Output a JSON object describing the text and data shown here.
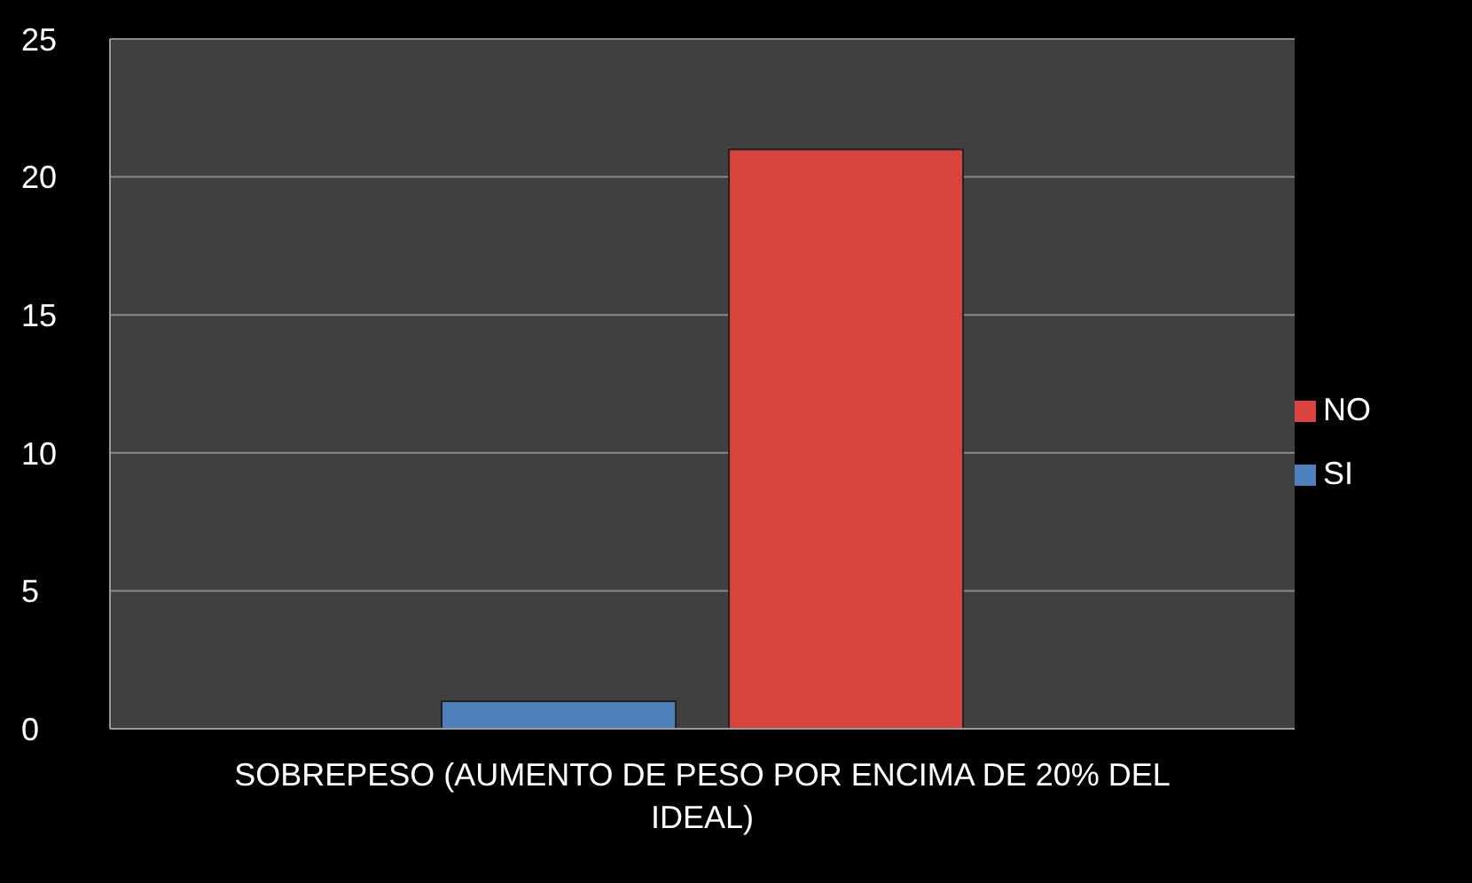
{
  "chart_data": {
    "type": "bar",
    "categories": [
      "SOBREPESO (AUMENTO DE PESO POR ENCIMA DE 20% DEL IDEAL)"
    ],
    "series": [
      {
        "name": "SI",
        "color": "#4f81bd",
        "values": [
          1
        ]
      },
      {
        "name": "NO",
        "color": "#d9443f",
        "values": [
          21
        ]
      }
    ],
    "ylim": [
      0,
      25
    ],
    "yticks": [
      0,
      5,
      10,
      15,
      20,
      25
    ],
    "grid": "y",
    "legend": "right"
  }
}
